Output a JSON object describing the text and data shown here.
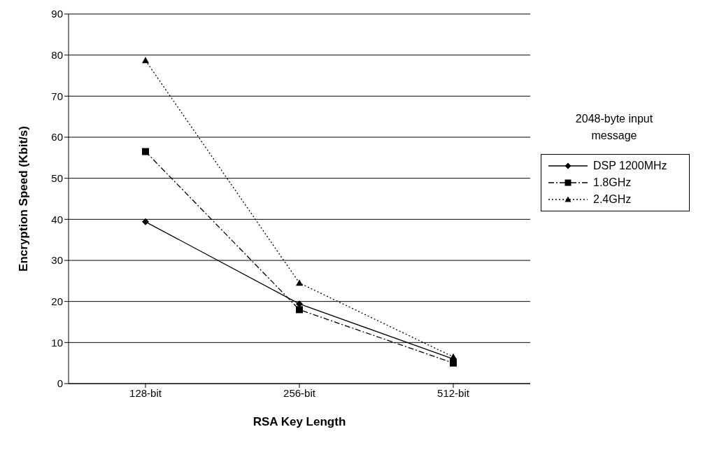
{
  "chart_data": {
    "type": "line",
    "xlabel": "RSA Key Length",
    "ylabel": "Encryption Speed (Kbit/s)",
    "legend_title": "2048-byte input message",
    "categories": [
      "128-bit",
      "256-bit",
      "512-bit"
    ],
    "series": [
      {
        "name": "DSP 1200MHz",
        "color": "#000000",
        "marker": "diamond",
        "line_style": "solid",
        "values": [
          39.4,
          19.4,
          6
        ]
      },
      {
        "name": "1.8GHz",
        "color": "#000000",
        "marker": "square",
        "line_style": "dashed",
        "values": [
          56.5,
          18,
          5
        ]
      },
      {
        "name": "2.4GHz",
        "color": "#000000",
        "marker": "triangle",
        "line_style": "dotted",
        "values": [
          78.7,
          24.5,
          6.5
        ]
      }
    ],
    "ylim": [
      0,
      90
    ],
    "yticks": [
      0,
      10,
      20,
      30,
      40,
      50,
      60,
      70,
      80,
      90
    ],
    "grid": "y",
    "legend": "right"
  }
}
